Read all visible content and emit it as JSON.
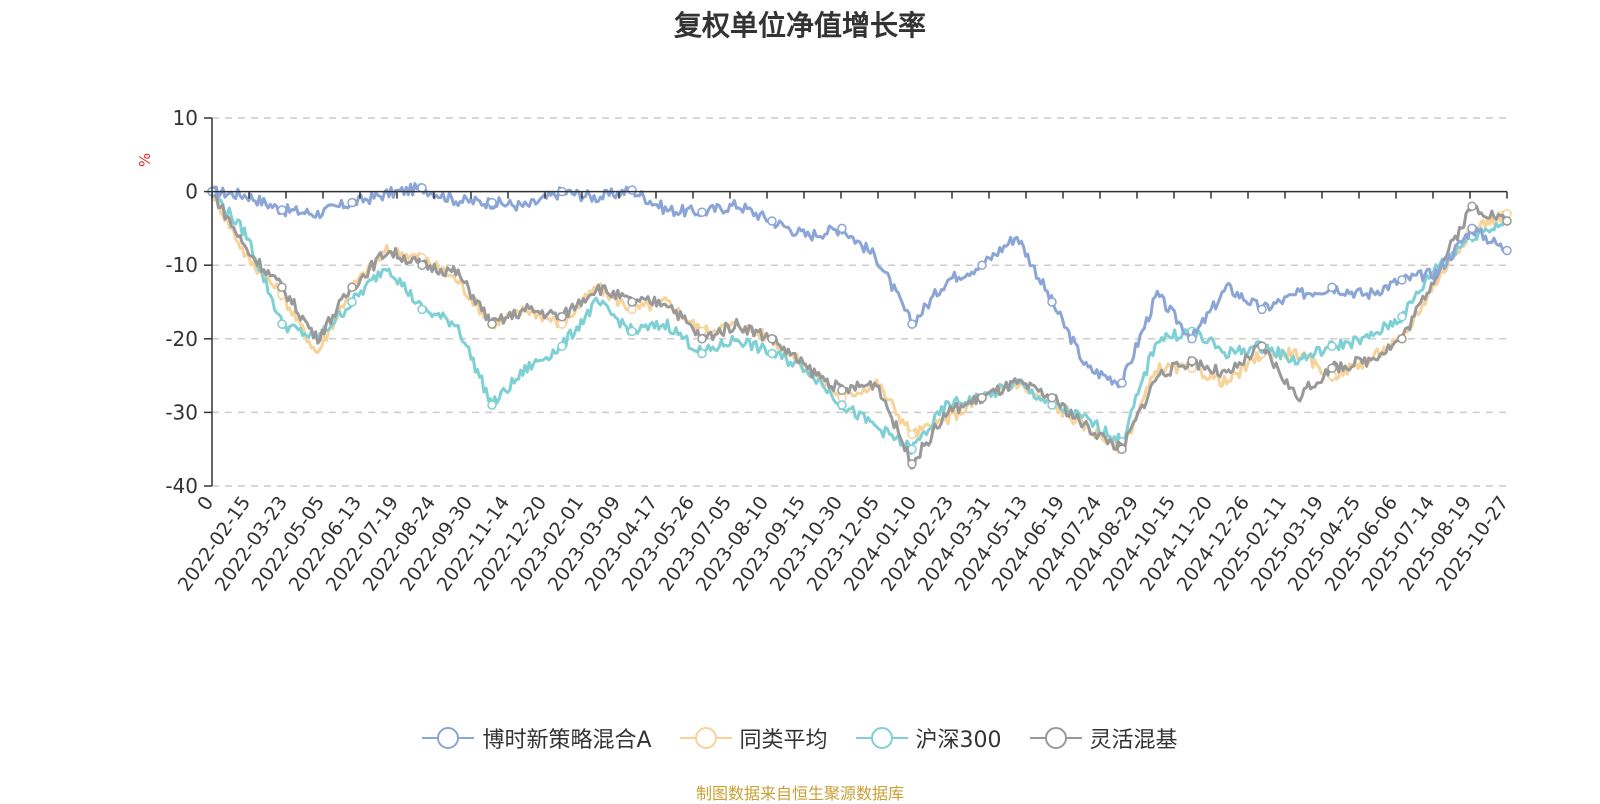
{
  "chart_data": {
    "type": "line",
    "title": "复权单位净值增长率",
    "ylabel": "%",
    "xlabel": "",
    "ylim": [
      -40,
      10
    ],
    "yticks": [
      10,
      0,
      -10,
      -20,
      -30,
      -40
    ],
    "xtick_labels": [
      "0",
      "2022-02-15",
      "2022-03-23",
      "2022-05-05",
      "2022-06-13",
      "2022-07-19",
      "2022-08-24",
      "2022-09-30",
      "2022-11-14",
      "2022-12-20",
      "2023-02-01",
      "2023-03-09",
      "2023-04-17",
      "2023-05-26",
      "2023-07-05",
      "2023-08-10",
      "2023-09-15",
      "2023-10-30",
      "2023-12-05",
      "2024-01-10",
      "2024-02-23",
      "2024-03-31",
      "2024-05-13",
      "2024-06-19",
      "2024-07-24",
      "2024-08-29",
      "2024-10-15",
      "2024-11-20",
      "2024-12-26",
      "2025-02-11",
      "2025-03-19",
      "2025-04-25",
      "2025-06-06",
      "2025-07-14",
      "2025-08-19",
      "2025-10-27"
    ],
    "grid": true,
    "legend_position": "bottom",
    "series": [
      {
        "name": "博时新策略混合A",
        "color": "#8ba6d6",
        "values": [
          0,
          -0.5,
          -2.5,
          -3,
          -1.5,
          -0.3,
          0.5,
          -1.2,
          -1.5,
          -2,
          0,
          -0.8,
          0.2,
          -2.5,
          -2.8,
          -1.8,
          -4,
          -6,
          -5,
          -9,
          -18,
          -12,
          -10,
          -6,
          -15,
          -24,
          -26,
          -14,
          -20,
          -13,
          -16,
          -14,
          -13,
          -14,
          -12,
          -11,
          -5,
          -8
        ]
      },
      {
        "name": "同类平均",
        "color": "#f7d39a",
        "values": [
          0,
          -9,
          -14,
          -22,
          -13,
          -8,
          -9,
          -12,
          -18,
          -16,
          -18,
          -13,
          -16,
          -15,
          -19,
          -18,
          -20,
          -24,
          -28,
          -26,
          -33,
          -31,
          -28,
          -26,
          -29,
          -32,
          -35,
          -24,
          -24,
          -26,
          -22,
          -22,
          -25,
          -23,
          -20,
          -12,
          -5,
          -3
        ]
      },
      {
        "name": "沪深300",
        "color": "#7fd0d4",
        "values": [
          0,
          -6,
          -18,
          -20,
          -15,
          -10,
          -16,
          -18,
          -29,
          -24,
          -21,
          -15,
          -19,
          -18,
          -22,
          -20,
          -22,
          -24,
          -29,
          -32,
          -35,
          -29,
          -28,
          -26,
          -29,
          -31,
          -34,
          -20,
          -19,
          -22,
          -21,
          -23,
          -21,
          -20,
          -17,
          -10,
          -6,
          -4
        ]
      },
      {
        "name": "灵活混基",
        "color": "#999999",
        "values": [
          0,
          -8,
          -13,
          -20,
          -13,
          -8,
          -10,
          -11,
          -18,
          -16,
          -17,
          -13,
          -15,
          -15,
          -20,
          -18,
          -20,
          -24,
          -27,
          -26,
          -37,
          -30,
          -28,
          -26,
          -28,
          -32,
          -35,
          -25,
          -23,
          -25,
          -21,
          -28,
          -24,
          -23,
          -20,
          -11,
          -2,
          -4
        ]
      }
    ]
  },
  "legend": {
    "items": [
      {
        "label": "博时新策略混合A"
      },
      {
        "label": "同类平均"
      },
      {
        "label": "沪深300"
      },
      {
        "label": "灵活混基"
      }
    ]
  },
  "colors": {
    "series_0": "#8ba6d6",
    "series_1": "#f7d39a",
    "series_2": "#7fd0d4",
    "series_3": "#999999",
    "unit_label": "#e03030",
    "source_text": "#c9a032",
    "axis": "#333333",
    "grid": "#cccccc"
  },
  "footer": {
    "source": "制图数据来自恒生聚源数据库"
  }
}
